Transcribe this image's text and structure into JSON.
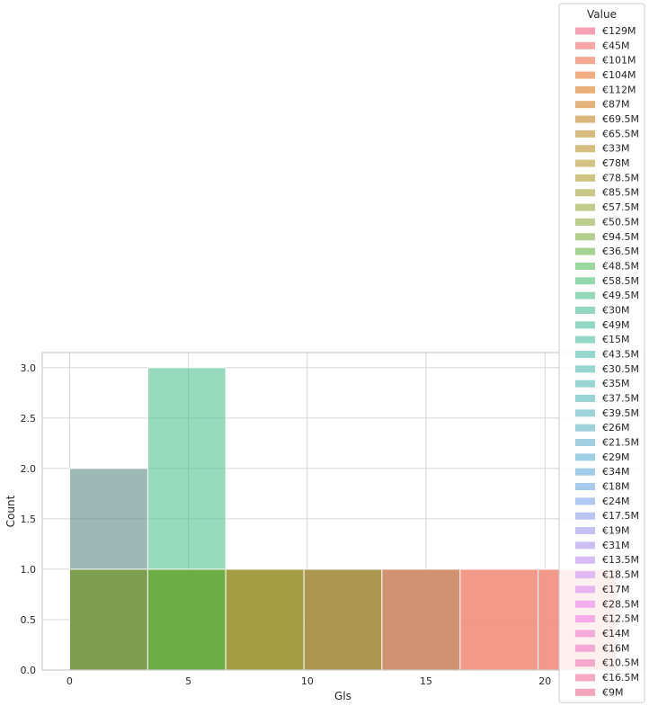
{
  "chart_data": {
    "type": "bar",
    "xlabel": "Gls",
    "ylabel": "Count",
    "xlim": [
      -1.15,
      24.15
    ],
    "ylim": [
      0,
      3.15
    ],
    "x_ticks": [
      0,
      5,
      10,
      15,
      20
    ],
    "y_ticks": [
      0.0,
      0.5,
      1.0,
      1.5,
      2.0,
      2.5,
      3.0
    ],
    "y_tick_labels": [
      "0.0",
      "0.5",
      "1.0",
      "1.5",
      "2.0",
      "2.5",
      "3.0"
    ],
    "grid": true,
    "legend": {
      "title": "Value",
      "placement": "top-right",
      "entries": [
        {
          "label": "€129M",
          "color": "#f7a0b4"
        },
        {
          "label": "€45M",
          "color": "#f7a5a5"
        },
        {
          "label": "€101M",
          "color": "#f5a790"
        },
        {
          "label": "€104M",
          "color": "#f0ae82"
        },
        {
          "label": "€112M",
          "color": "#ebb07a"
        },
        {
          "label": "€87M",
          "color": "#e3b37b"
        },
        {
          "label": "€69.5M",
          "color": "#dcb77b"
        },
        {
          "label": "€65.5M",
          "color": "#d8ba7d"
        },
        {
          "label": "€33M",
          "color": "#d6be80"
        },
        {
          "label": "€78M",
          "color": "#d2c283"
        },
        {
          "label": "€78.5M",
          "color": "#cec585"
        },
        {
          "label": "€85.5M",
          "color": "#c9c888"
        },
        {
          "label": "€57.5M",
          "color": "#c3cb8b"
        },
        {
          "label": "€50.5M",
          "color": "#bccd8e"
        },
        {
          "label": "€94.5M",
          "color": "#b3d090"
        },
        {
          "label": "€36.5M",
          "color": "#a7d392"
        },
        {
          "label": "€48.5M",
          "color": "#9bd79f"
        },
        {
          "label": "€58.5M",
          "color": "#94d8ac"
        },
        {
          "label": "€49.5M",
          "color": "#92d8b8"
        },
        {
          "label": "€30M",
          "color": "#92d8c0"
        },
        {
          "label": "€49M",
          "color": "#93d8c4"
        },
        {
          "label": "€15M",
          "color": "#94d8c8"
        },
        {
          "label": "€43.5M",
          "color": "#95d7cc"
        },
        {
          "label": "€30.5M",
          "color": "#97d6cf"
        },
        {
          "label": "€35M",
          "color": "#99d5d2"
        },
        {
          "label": "€37.5M",
          "color": "#9bd4d5"
        },
        {
          "label": "€39.5M",
          "color": "#9dd3d9"
        },
        {
          "label": "€26M",
          "color": "#9fd2dc"
        },
        {
          "label": "€21.5M",
          "color": "#a0d0e1"
        },
        {
          "label": "€29M",
          "color": "#a1cfe5"
        },
        {
          "label": "€34M",
          "color": "#a2cdea"
        },
        {
          "label": "€18M",
          "color": "#a6cbee"
        },
        {
          "label": "€24M",
          "color": "#b0c8f2"
        },
        {
          "label": "€17.5M",
          "color": "#bac5f4"
        },
        {
          "label": "€19M",
          "color": "#c4c2f5"
        },
        {
          "label": "€31M",
          "color": "#cdbff5"
        },
        {
          "label": "€13.5M",
          "color": "#d7bbf4"
        },
        {
          "label": "€18.5M",
          "color": "#e0b8f3"
        },
        {
          "label": "€17M",
          "color": "#e9b3f1"
        },
        {
          "label": "€28.5M",
          "color": "#f0aeee"
        },
        {
          "label": "€12.5M",
          "color": "#f4abe6"
        },
        {
          "label": "€14M",
          "color": "#f5aadc"
        },
        {
          "label": "€16M",
          "color": "#f5a9d4"
        },
        {
          "label": "€10.5M",
          "color": "#f5a8cc"
        },
        {
          "label": "€16.5M",
          "color": "#f5a7c4"
        },
        {
          "label": "€9M",
          "color": "#f5a5bc"
        }
      ]
    },
    "bars": [
      {
        "x0": 0,
        "x1": 3.29,
        "count": 2,
        "color": "#5a8a84",
        "opacity": 0.6
      },
      {
        "x0": 3.29,
        "x1": 6.57,
        "count": 3,
        "color": "#4cbf8f",
        "opacity": 0.58
      },
      {
        "x0": 0,
        "x1": 3.29,
        "count": 1,
        "color": "#7b9b4a",
        "opacity": 0.95
      },
      {
        "x0": 3.29,
        "x1": 6.57,
        "count": 1,
        "color": "#6aab3e",
        "opacity": 0.95
      },
      {
        "x0": 6.57,
        "x1": 9.86,
        "count": 1,
        "color": "#a09839",
        "opacity": 0.95
      },
      {
        "x0": 9.86,
        "x1": 13.14,
        "count": 1,
        "color": "#a89148",
        "opacity": 0.95
      },
      {
        "x0": 13.14,
        "x1": 16.43,
        "count": 1,
        "color": "#cf8c6a",
        "opacity": 0.95
      },
      {
        "x0": 16.43,
        "x1": 19.71,
        "count": 1,
        "color": "#f19382",
        "opacity": 0.95
      },
      {
        "x0": 19.71,
        "x1": 23,
        "count": 1,
        "color": "#f29385",
        "opacity": 0.95
      }
    ]
  }
}
